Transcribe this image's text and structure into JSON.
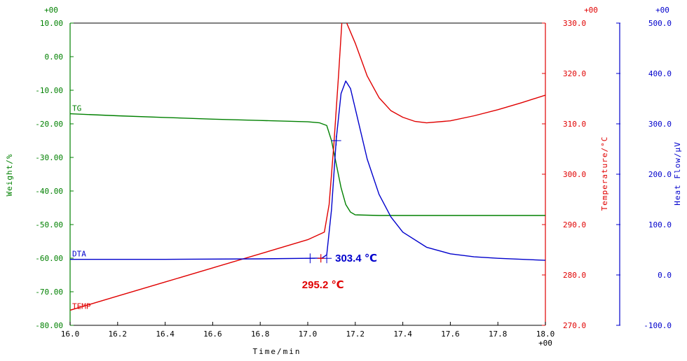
{
  "chart_data": {
    "type": "line",
    "x_axis": {
      "label": "Time/min",
      "range": [
        16.0,
        18.0
      ],
      "ticks": [
        16.0,
        16.2,
        16.4,
        16.6,
        16.8,
        17.0,
        17.2,
        17.4,
        17.6,
        17.8,
        18.0
      ],
      "tick_labels": [
        "16.0",
        "16.2",
        "16.4",
        "16.6",
        "16.8",
        "17.0",
        "17.2",
        "17.4",
        "17.6",
        "17.8",
        "18.0"
      ],
      "exponent": "+00"
    },
    "y_axes": [
      {
        "id": "weight",
        "label": "Weight/%",
        "side": "left",
        "color": "#008000",
        "range": [
          -80,
          10
        ],
        "ticks": [
          10,
          0,
          -10,
          -20,
          -30,
          -40,
          -50,
          -60,
          -70,
          -80
        ],
        "tick_labels": [
          "10.00",
          "0.00",
          "-10.00",
          "-20.00",
          "-30.00",
          "-40.00",
          "-50.00",
          "-60.00",
          "-70.00",
          "-80.00"
        ],
        "exponent": "+00"
      },
      {
        "id": "temperature",
        "label": "Temperature/°C",
        "side": "right",
        "color": "#e00000",
        "range": [
          270,
          330
        ],
        "ticks": [
          330,
          320,
          310,
          300,
          290,
          280,
          270
        ],
        "tick_labels": [
          "330.0",
          "320.0",
          "310.0",
          "300.0",
          "290.0",
          "280.0",
          "270.0"
        ],
        "exponent": "+00"
      },
      {
        "id": "heatflow",
        "label": "Heat Flow/μV",
        "side": "right",
        "color": "#0000cc",
        "range": [
          -100,
          500
        ],
        "ticks": [
          500,
          400,
          300,
          200,
          100,
          0,
          -100
        ],
        "tick_labels": [
          "500.0",
          "400.0",
          "300.0",
          "200.0",
          "100.0",
          "0.0",
          "-100.0"
        ],
        "exponent": "+00"
      }
    ],
    "series": [
      {
        "name": "TG",
        "axis": "weight",
        "color": "#008000",
        "x": [
          16.0,
          16.2,
          16.4,
          16.6,
          16.8,
          17.0,
          17.05,
          17.08,
          17.1,
          17.12,
          17.14,
          17.16,
          17.18,
          17.2,
          17.3,
          17.5,
          17.8,
          18.0
        ],
        "y": [
          -17.0,
          -17.6,
          -18.1,
          -18.6,
          -19.0,
          -19.4,
          -19.7,
          -20.5,
          -25.0,
          -32.0,
          -39.0,
          -44.0,
          -46.3,
          -47.1,
          -47.3,
          -47.3,
          -47.3,
          -47.3
        ]
      },
      {
        "name": "TEMP",
        "axis": "temperature",
        "color": "#e00000",
        "x": [
          16.0,
          16.2,
          16.4,
          16.6,
          16.8,
          17.0,
          17.07,
          17.09,
          17.11,
          17.13,
          17.146,
          17.2,
          17.25,
          17.3,
          17.35,
          17.4,
          17.45,
          17.5,
          17.6,
          17.7,
          17.8,
          17.9,
          18.0
        ],
        "y": [
          273.0,
          275.8,
          278.6,
          281.4,
          284.2,
          287.0,
          288.5,
          294.0,
          306.0,
          320.0,
          332.0,
          326.0,
          319.5,
          315.2,
          312.6,
          311.3,
          310.5,
          310.2,
          310.6,
          311.6,
          312.8,
          314.2,
          315.7
        ]
      },
      {
        "name": "DTA",
        "axis": "heatflow",
        "color": "#0000cc",
        "x": [
          16.0,
          16.4,
          16.8,
          17.0,
          17.06,
          17.08,
          17.1,
          17.12,
          17.14,
          17.16,
          17.18,
          17.2,
          17.25,
          17.3,
          17.35,
          17.4,
          17.5,
          17.6,
          17.7,
          17.8,
          18.0
        ],
        "y": [
          31.0,
          31.0,
          32.0,
          33.0,
          33.5,
          40.0,
          130.0,
          270.0,
          360.0,
          385.0,
          370.0,
          330.0,
          230.0,
          160.0,
          115.0,
          85.0,
          55.0,
          42.0,
          36.0,
          33.0,
          29.0
        ]
      }
    ],
    "annotations": [
      {
        "text": "303.4 ℃",
        "color": "#0000cc",
        "x": 17.08,
        "axis": "heatflow",
        "y": 33.0
      },
      {
        "text": "295.2 ℃",
        "color": "#e00000",
        "x": 17.07,
        "axis": "heatflow",
        "y": 33.0
      }
    ],
    "markers": [
      {
        "label": "DTA onset",
        "x": 17.01,
        "axis": "heatflow",
        "y": 33.0
      },
      {
        "label": "DTA onset",
        "x": 17.08,
        "axis": "heatflow",
        "y": 33.0
      },
      {
        "label": "TG inflection",
        "x": 17.12,
        "axis": "weight",
        "y": -25.0
      }
    ],
    "grid": false,
    "legend": "inline labels at left"
  }
}
